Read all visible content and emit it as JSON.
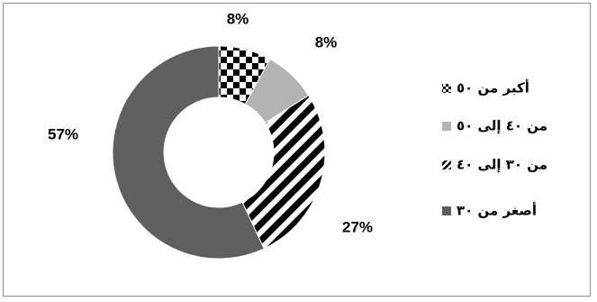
{
  "chart_data": {
    "type": "pie",
    "subtype": "donut",
    "title": "",
    "categories": [
      "أكبر من ٥٠",
      "من ٤٠ إلى ٥٠",
      "من ٣٠ إلى ٤٠",
      "أصغر من ٣٠"
    ],
    "values": [
      8,
      8,
      27,
      57
    ],
    "value_labels": [
      "8%",
      "8%",
      "27%",
      "57%"
    ],
    "legend_placement": "right",
    "fills": [
      {
        "pattern": "checkerboard",
        "colors": [
          "#000000",
          "#ffffff"
        ]
      },
      {
        "pattern": "solid",
        "colors": [
          "#b3b3b3"
        ]
      },
      {
        "pattern": "diagonal-stripes",
        "colors": [
          "#000000",
          "#ffffff"
        ]
      },
      {
        "pattern": "solid",
        "colors": [
          "#5f5f5f"
        ]
      }
    ]
  }
}
